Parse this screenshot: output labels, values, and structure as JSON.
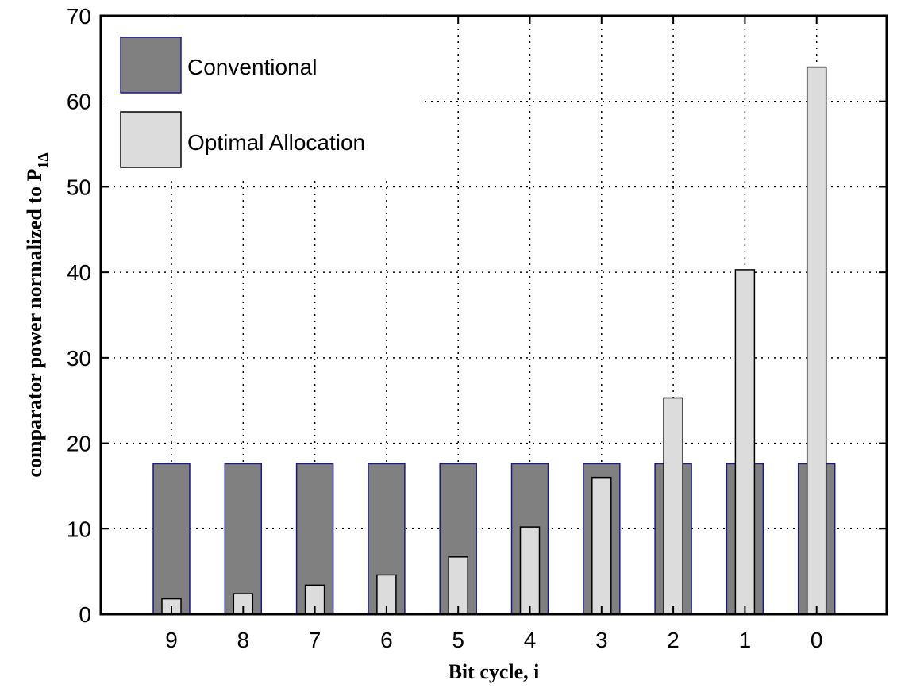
{
  "chart_data": {
    "type": "bar",
    "categories": [
      "9",
      "8",
      "7",
      "6",
      "5",
      "4",
      "3",
      "2",
      "1",
      "0"
    ],
    "series": [
      {
        "name": "Conventional",
        "color": "#808080",
        "edge_color": "#1a1a80",
        "values": [
          17.6,
          17.6,
          17.6,
          17.6,
          17.6,
          17.6,
          17.6,
          17.6,
          17.6,
          17.6
        ]
      },
      {
        "name": "Optimal Allocation",
        "color": "#dcdcdc",
        "edge_color": "#000000",
        "values": [
          1.8,
          2.4,
          3.4,
          4.6,
          6.7,
          10.2,
          16.0,
          25.3,
          40.3,
          64.0
        ]
      }
    ],
    "xlabel": "Bit cycle, i",
    "ylabel": "comparator power normalized to P",
    "ylabel_subscript": "1Δ",
    "ylim": [
      0,
      70
    ],
    "yticks": [
      0,
      10,
      20,
      30,
      40,
      50,
      60,
      70
    ],
    "grid": true,
    "legend_position": "top-left"
  }
}
